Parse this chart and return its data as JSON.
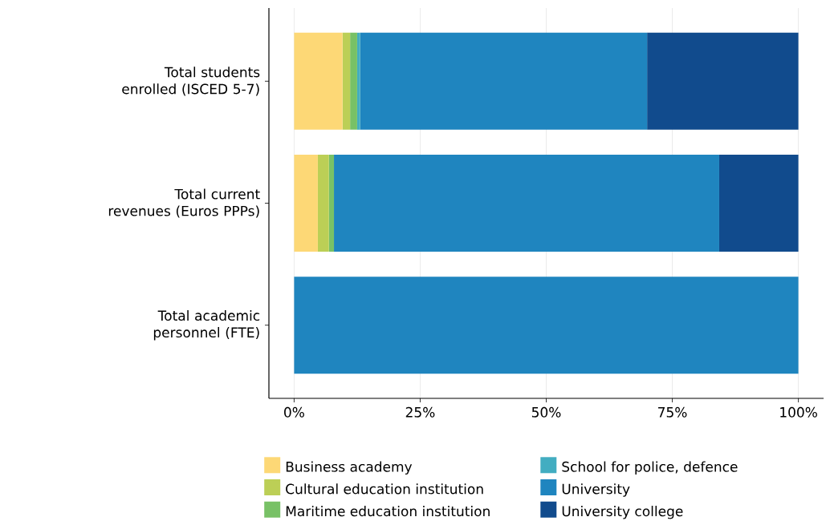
{
  "chart_data": {
    "type": "bar",
    "orientation": "horizontal",
    "stacked": true,
    "categories": [
      "Total students enrolled (ISCED 5-7)",
      "Total current revenues (Euros PPPs)",
      "Total academic personnel (FTE)"
    ],
    "series": [
      {
        "name": "Business academy",
        "color": "#fdd876",
        "values": [
          9.6,
          4.7,
          0
        ]
      },
      {
        "name": "Cultural education institution",
        "color": "#bccf56",
        "values": [
          1.5,
          2.2,
          0
        ]
      },
      {
        "name": "Maritime education institution",
        "color": "#78c166",
        "values": [
          1.4,
          1.0,
          0
        ]
      },
      {
        "name": "School for police, defence",
        "color": "#42adc1",
        "values": [
          0.6,
          0,
          0
        ]
      },
      {
        "name": "University",
        "color": "#1f85bf",
        "values": [
          56.9,
          76.4,
          100
        ]
      },
      {
        "name": "University college",
        "color": "#114b8d",
        "values": [
          30.0,
          15.7,
          0
        ]
      }
    ],
    "xlim": [
      -5,
      105
    ],
    "xticks": [
      {
        "value": 0,
        "label": "0%"
      },
      {
        "value": 25,
        "label": "25%"
      },
      {
        "value": 50,
        "label": "50%"
      },
      {
        "value": 75,
        "label": "75%"
      },
      {
        "value": 100,
        "label": "100%"
      }
    ],
    "grid": "x",
    "legend": "bottom"
  }
}
